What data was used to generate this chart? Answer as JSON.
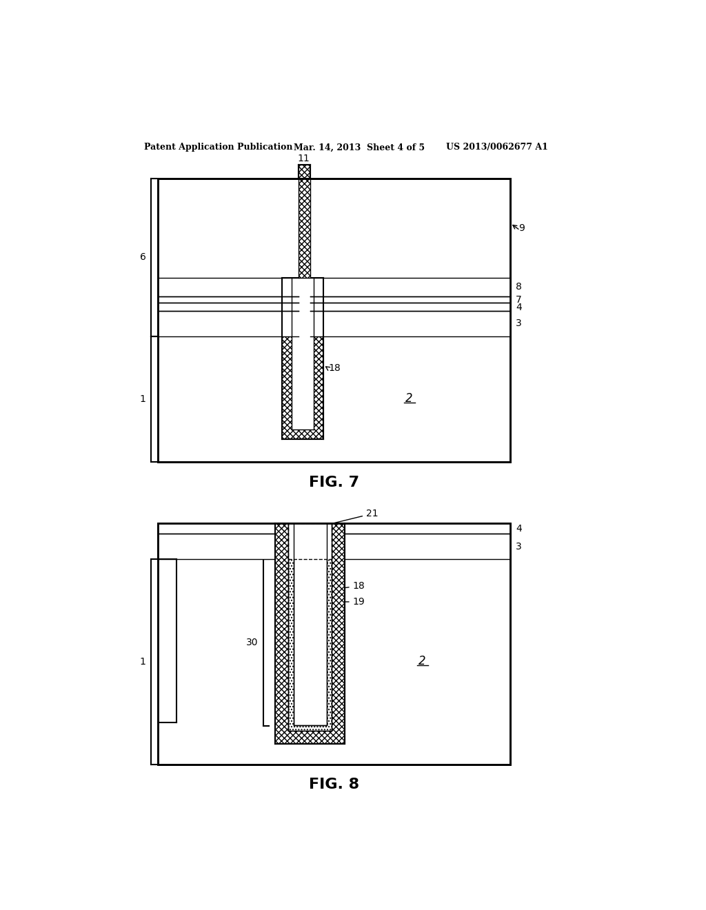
{
  "bg_color": "#ffffff",
  "header_text": "Patent Application Publication",
  "header_date": "Mar. 14, 2013  Sheet 4 of 5",
  "header_patent": "US 2013/0062677 A1",
  "fig7_title": "FIG. 7",
  "fig8_title": "FIG. 8",
  "line_color": "#000000"
}
